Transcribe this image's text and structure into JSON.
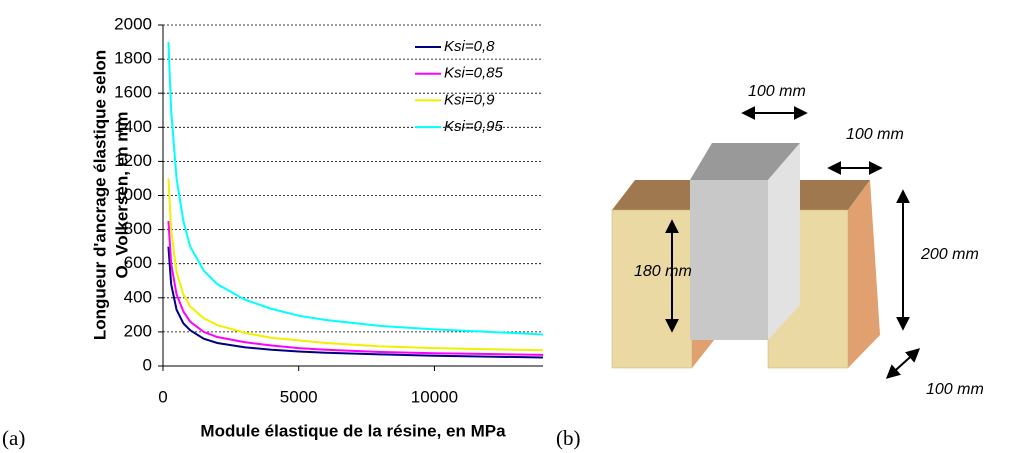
{
  "chart_data": {
    "type": "line",
    "x_label": "Module élastique de la résine, en MPa",
    "y_label": [
      "Longueur d'ancrage élastique selon",
      "O. Volkersen, en mm"
    ],
    "x": [
      200,
      300,
      500,
      750,
      1000,
      1500,
      2000,
      3000,
      4000,
      5000,
      6000,
      8000,
      10000,
      12000,
      14000
    ],
    "series": [
      {
        "name": "Ksi=0,8",
        "color": "#000080",
        "values": [
          700,
          480,
          330,
          250,
          210,
          160,
          135,
          110,
          95,
          85,
          78,
          68,
          60,
          55,
          50
        ]
      },
      {
        "name": "Ksi=0,85",
        "color": "#ff00ff",
        "values": [
          850,
          600,
          420,
          320,
          260,
          200,
          170,
          140,
          120,
          105,
          95,
          82,
          75,
          70,
          65
        ]
      },
      {
        "name": "Ksi=0,9",
        "color": "#f0f000",
        "values": [
          1100,
          800,
          550,
          420,
          350,
          280,
          240,
          195,
          165,
          150,
          135,
          115,
          105,
          98,
          92
        ]
      },
      {
        "name": "Ksi=0,95",
        "color": "#00ffff",
        "values": [
          1900,
          1500,
          1100,
          850,
          700,
          560,
          480,
          390,
          335,
          295,
          270,
          235,
          215,
          200,
          185
        ]
      }
    ],
    "xlim": [
      0,
      14000
    ],
    "xticks": [
      0,
      5000,
      10000
    ],
    "ylim": [
      0,
      2000
    ],
    "yticks": [
      0,
      200,
      400,
      600,
      800,
      1000,
      1200,
      1400,
      1600,
      1800,
      2000
    ],
    "grid": true,
    "legend": "top-right"
  },
  "panels": [
    "(a)",
    "(b)"
  ],
  "diagram": {
    "labels": [
      "100 mm",
      "100 mm",
      "200 mm",
      "180 mm",
      "100 mm"
    ]
  }
}
